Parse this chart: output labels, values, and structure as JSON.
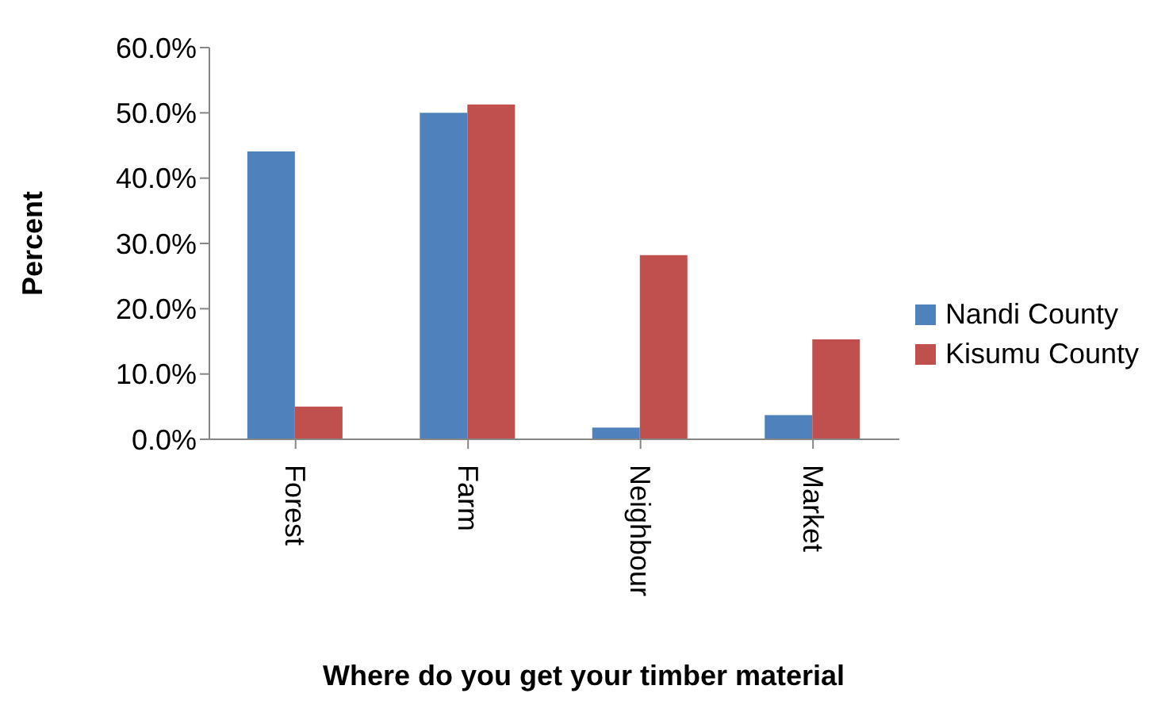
{
  "chart_data": {
    "type": "bar",
    "xlabel": "Where do you get your timber material",
    "ylabel": "Percent",
    "categories": [
      "Forest",
      "Farm",
      "Neighbour",
      "Market"
    ],
    "series": [
      {
        "name": "Nandi County",
        "color": "#4f81bd",
        "values": [
          44.1,
          50.0,
          1.8,
          3.7
        ]
      },
      {
        "name": "Kisumu County",
        "color": "#c0504d",
        "values": [
          5.0,
          51.3,
          28.2,
          15.3
        ]
      }
    ],
    "ylim": [
      0,
      60
    ],
    "yticks": [
      {
        "value": 0,
        "label": "0.0%"
      },
      {
        "value": 10,
        "label": "10.0%"
      },
      {
        "value": 20,
        "label": "20.0%"
      },
      {
        "value": 30,
        "label": "30.0%"
      },
      {
        "value": 40,
        "label": "40.0%"
      },
      {
        "value": 50,
        "label": "50.0%"
      },
      {
        "value": 60,
        "label": "60.0%"
      }
    ],
    "grid": false,
    "legend": "right"
  }
}
